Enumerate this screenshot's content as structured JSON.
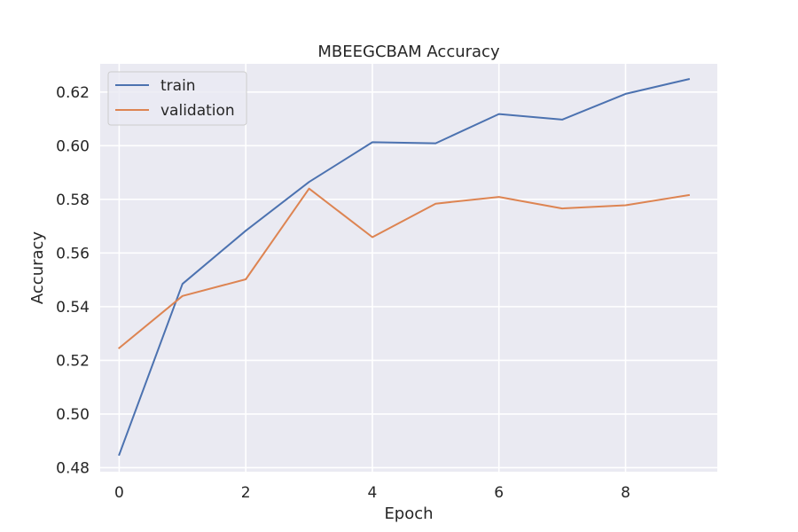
{
  "chart_data": {
    "type": "line",
    "title": "MBEEGCBAM Accuracy",
    "xlabel": "Epoch",
    "ylabel": "Accuracy",
    "xlim": [
      -0.3,
      9.45
    ],
    "ylim": [
      0.4785,
      0.6305
    ],
    "xticks": [
      0,
      2,
      4,
      6,
      8
    ],
    "xtick_labels": [
      "0",
      "2",
      "4",
      "6",
      "8"
    ],
    "yticks": [
      0.48,
      0.5,
      0.52,
      0.54,
      0.56,
      0.58,
      0.6,
      0.62
    ],
    "ytick_labels": [
      "0.48",
      "0.50",
      "0.52",
      "0.54",
      "0.56",
      "0.58",
      "0.60",
      "0.62"
    ],
    "x": [
      0,
      1,
      2,
      3,
      4,
      5,
      6,
      7,
      8,
      9
    ],
    "grid": true,
    "legend_position": "top-left",
    "series": [
      {
        "name": "train",
        "color": "#4c72b0",
        "values": [
          0.4848,
          0.5485,
          0.5683,
          0.5865,
          0.6013,
          0.6009,
          0.6118,
          0.6097,
          0.6193,
          0.6248
        ]
      },
      {
        "name": "validation",
        "color": "#dd8452",
        "values": [
          0.5246,
          0.544,
          0.5502,
          0.584,
          0.5659,
          0.5784,
          0.5809,
          0.5766,
          0.5778,
          0.5816
        ]
      }
    ]
  }
}
